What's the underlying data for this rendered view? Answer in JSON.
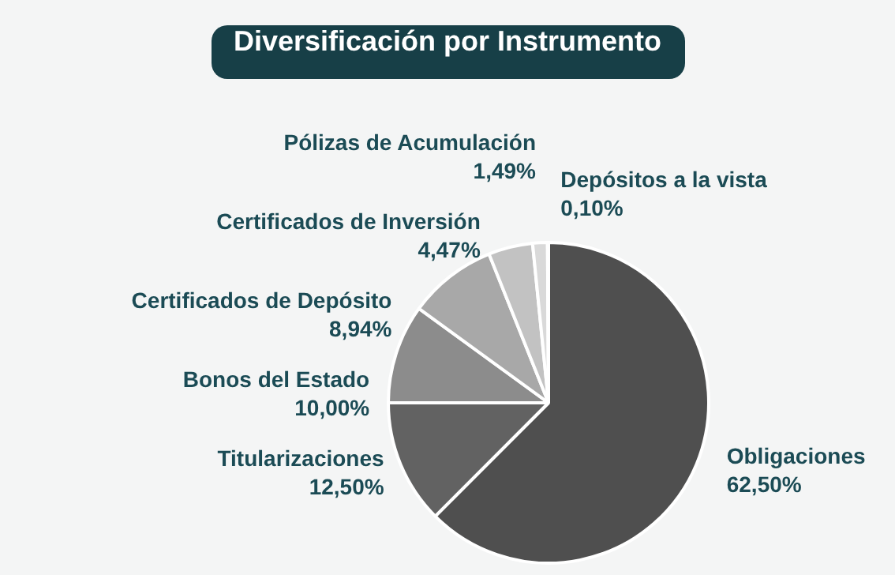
{
  "chart_data": {
    "type": "pie",
    "title": "Diversificación por Instrumento",
    "categories": [
      "Obligaciones",
      "Titularizaciones",
      "Bonos del Estado",
      "Certificados de Depósito",
      "Certificados de Inversión",
      "Pólizas de Acumulación",
      "Depósitos a la vista"
    ],
    "values": [
      62.5,
      12.5,
      10.0,
      8.94,
      4.47,
      1.49,
      0.1
    ],
    "colors": [
      "#4f4f4f",
      "#626262",
      "#8c8c8c",
      "#a8a8a8",
      "#c2c2c2",
      "#d9d9d9",
      "#efefef"
    ],
    "value_labels": [
      "62,50%",
      "12,50%",
      "10,00%",
      "8,94%",
      "4,47%",
      "1,49%",
      "0,10%"
    ]
  }
}
